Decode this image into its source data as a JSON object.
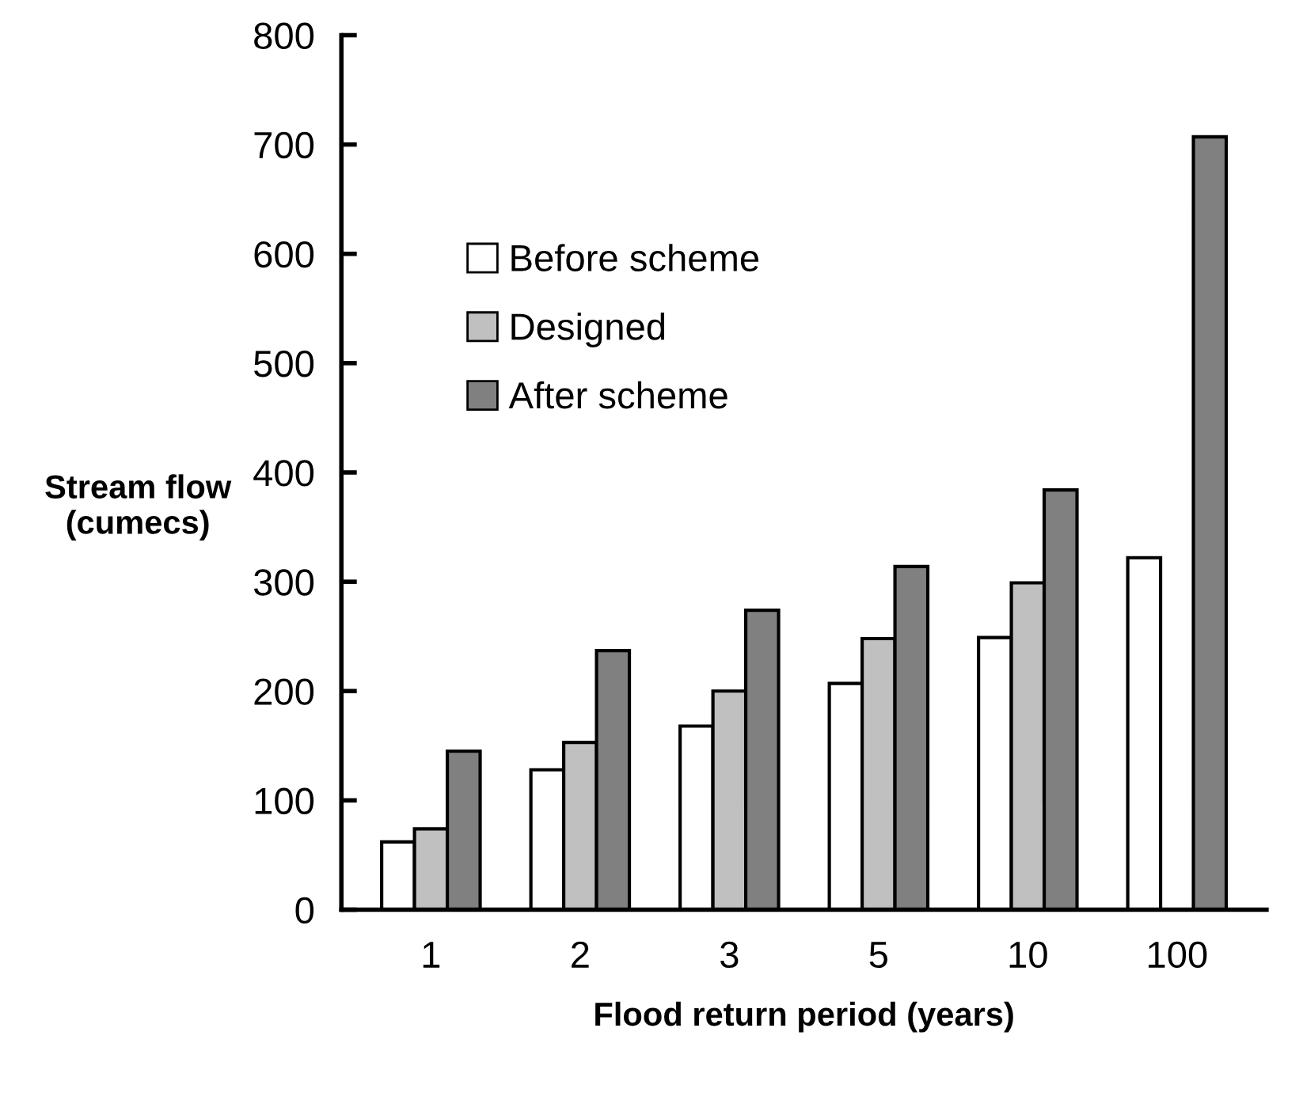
{
  "chart_data": {
    "type": "bar",
    "xlabel": "Flood return period (years)",
    "ylabel": "Stream flow\n(cumecs)",
    "categories": [
      "1",
      "2",
      "3",
      "5",
      "10",
      "100"
    ],
    "series": [
      {
        "name": "Before scheme",
        "color": "#ffffff",
        "values": [
          62,
          128,
          168,
          207,
          249,
          322
        ]
      },
      {
        "name": "Designed",
        "color": "#c0c0c0",
        "values": [
          74,
          153,
          200,
          248,
          299,
          null
        ]
      },
      {
        "name": "After scheme",
        "color": "#808080",
        "values": [
          145,
          237,
          274,
          314,
          384,
          707
        ]
      }
    ],
    "ylim": [
      0,
      800
    ],
    "yticks": [
      0,
      100,
      200,
      300,
      400,
      500,
      600,
      700,
      800
    ],
    "grid": false,
    "legend": "top left"
  }
}
